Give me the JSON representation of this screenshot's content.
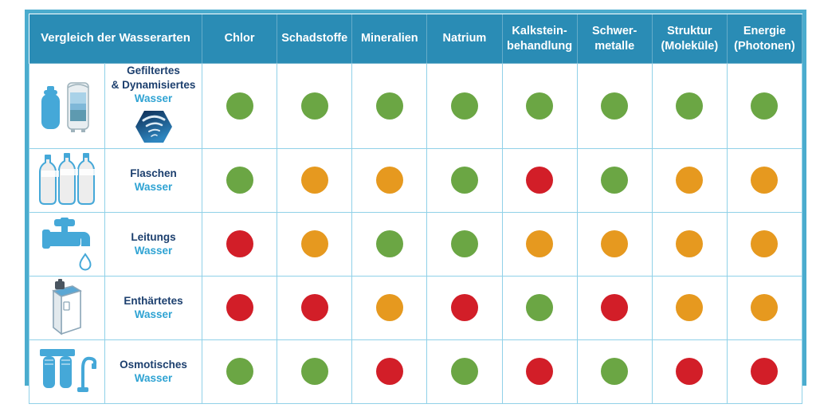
{
  "chart_data": {
    "type": "table",
    "title": "Vergleich der Wasserarten",
    "columns": [
      "Chlor",
      "Schadstoffe",
      "Mineralien",
      "Natrium",
      "Kalkstein-\nbehandlung",
      "Schwer-\nmetalle",
      "Struktur\n(Moleküle)",
      "Energie\n(Photonen)"
    ],
    "rows": [
      {
        "icon": "filtered-water-icon",
        "badge": "vortex-hexagon-badge",
        "label": "Gefiltertes\n& Dynamisiertes",
        "sublabel": "Wasser",
        "ratings": [
          "green",
          "green",
          "green",
          "green",
          "green",
          "green",
          "green",
          "green"
        ]
      },
      {
        "icon": "bottled-water-icon",
        "label": "Flaschen",
        "sublabel": "Wasser",
        "ratings": [
          "green",
          "orange",
          "orange",
          "green",
          "red",
          "green",
          "orange",
          "orange"
        ]
      },
      {
        "icon": "tap-water-icon",
        "label": "Leitungs",
        "sublabel": "Wasser",
        "ratings": [
          "red",
          "orange",
          "green",
          "green",
          "orange",
          "orange",
          "orange",
          "orange"
        ]
      },
      {
        "icon": "softened-water-icon",
        "label": "Enthärtetes",
        "sublabel": "Wasser",
        "ratings": [
          "red",
          "red",
          "orange",
          "red",
          "green",
          "red",
          "orange",
          "orange"
        ]
      },
      {
        "icon": "osmosis-water-icon",
        "label": "Osmotisches",
        "sublabel": "Wasser",
        "ratings": [
          "green",
          "green",
          "red",
          "green",
          "red",
          "green",
          "red",
          "red"
        ]
      }
    ],
    "rating_colors": {
      "green": "#6BA644",
      "orange": "#E6991F",
      "red": "#D21E28"
    },
    "layout": {
      "grid": true,
      "legend": false
    }
  },
  "theme": {
    "header_bg": "#2A8CB5",
    "border": "#4BACCE",
    "grid": "#90D1E8",
    "label_dark": "#1C3F6E",
    "label_teal": "#2FA3D3",
    "icon_blue": "#45A8D8"
  }
}
